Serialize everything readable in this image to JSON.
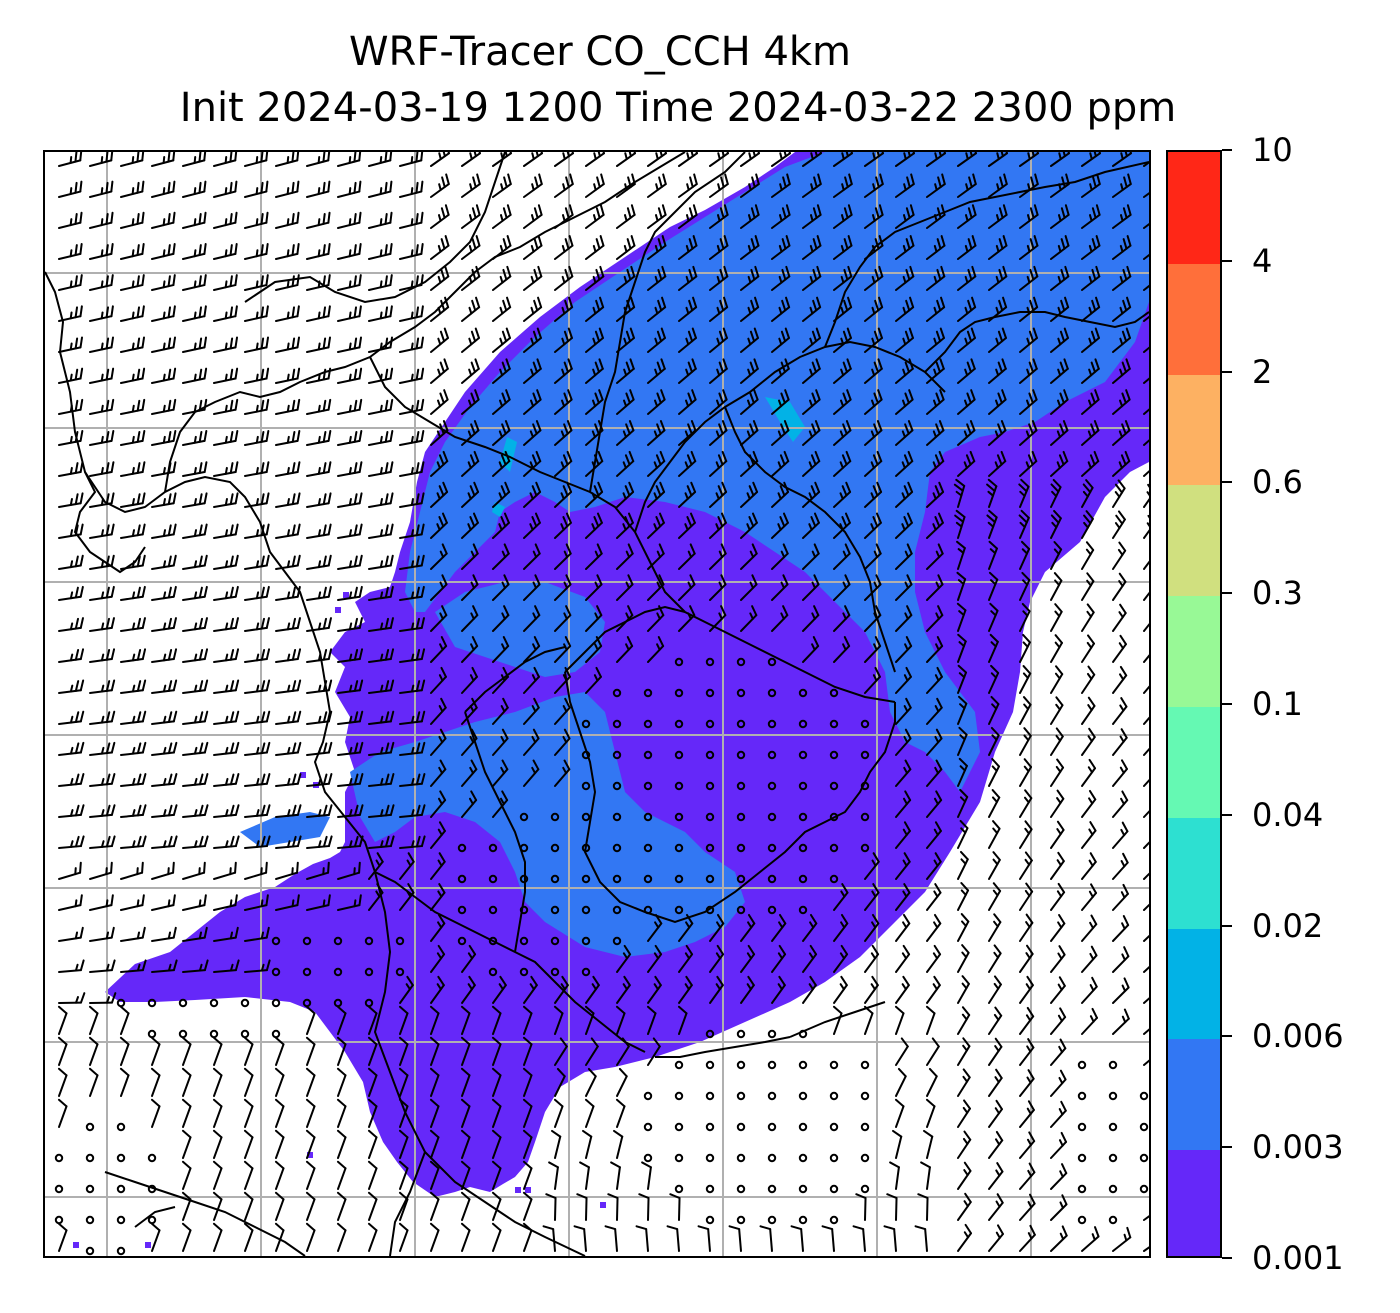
{
  "title": {
    "line1": "WRF-Tracer CO_CCH 4km",
    "line2": "Init 2024-03-19 1200 Time 2024-03-22 2300 ppm"
  },
  "colorbar": {
    "levels": [
      "0.001",
      "0.003",
      "0.006",
      "0.02",
      "0.04",
      "0.1",
      "0.3",
      "0.6",
      "2",
      "4",
      "10"
    ],
    "colors": [
      "#6528f9",
      "#3277f3",
      "#02b2e6",
      "#2de0d1",
      "#65f9b3",
      "#98f996",
      "#d0e07f",
      "#fdb162",
      "#ff6f3a",
      "#ff2717"
    ]
  },
  "map": {
    "background": "#ffffff",
    "grid_color": "#b0b0b0",
    "border_color": "#000000",
    "barb_color": "#000000",
    "calm_marker": "small-circle"
  }
}
